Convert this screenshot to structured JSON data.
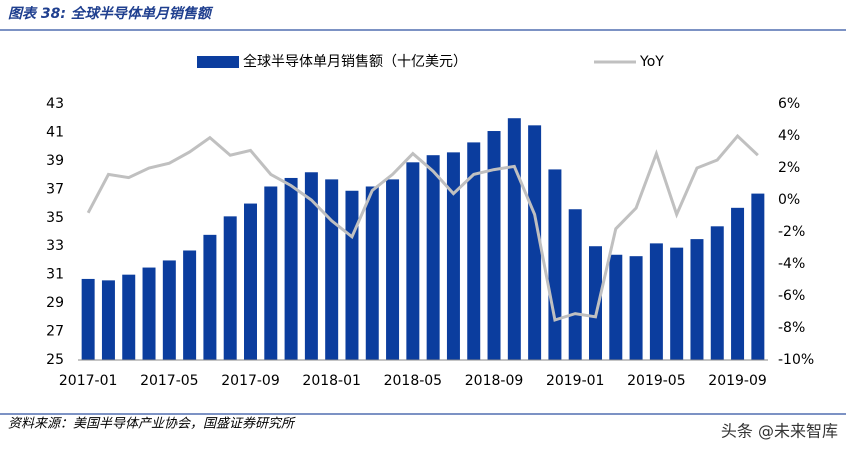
{
  "chart_data": {
    "type": "bar_line",
    "title": "图表 38:  全球半导体单月销售额",
    "source": "资料来源：美国半导体产业协会，国盛证券研究所",
    "watermark": "头条 @未来智库",
    "categories": [
      "2017-01",
      null,
      null,
      null,
      "2017-05",
      null,
      null,
      null,
      "2017-09",
      null,
      null,
      null,
      "2018-01",
      null,
      null,
      null,
      "2018-05",
      null,
      null,
      null,
      "2018-09",
      null,
      null,
      null,
      "2019-01",
      null,
      null,
      null,
      "2019-05",
      null,
      null,
      null,
      "2019-09",
      null
    ],
    "series": [
      {
        "name": "全球半导体单月销售额（十亿美元）",
        "color": "#0b3d9e",
        "type": "bar",
        "values": [
          30.7,
          30.6,
          31.0,
          31.5,
          32.0,
          32.7,
          33.8,
          35.1,
          36.0,
          37.2,
          37.8,
          38.2,
          37.7,
          36.9,
          37.2,
          37.7,
          38.9,
          39.4,
          39.6,
          40.3,
          41.1,
          42.0,
          41.5,
          38.4,
          35.6,
          33.0,
          32.4,
          32.3,
          33.2,
          32.9,
          33.5,
          34.4,
          35.7,
          36.7
        ]
      },
      {
        "name": "YoY",
        "color": "#c0c0c0",
        "type": "line",
        "axis": "y2",
        "values": [
          -0.8,
          1.6,
          1.4,
          2.0,
          2.3,
          3.0,
          3.9,
          2.8,
          3.1,
          1.6,
          0.9,
          0.0,
          -1.3,
          -2.3,
          0.6,
          1.6,
          2.9,
          1.8,
          0.4,
          1.6,
          1.9,
          2.1,
          -0.9,
          -7.5,
          -7.1,
          -7.3,
          -1.8,
          -0.5,
          2.9,
          -0.9,
          2.0,
          2.5,
          4.0,
          2.8
        ]
      }
    ],
    "ylim": [
      25,
      43
    ],
    "yticks": [
      25,
      27,
      29,
      31,
      33,
      35,
      37,
      39,
      41,
      43
    ],
    "y2lim": [
      -10,
      6
    ],
    "y2ticks": [
      {
        "value": -10,
        "label": "-10%"
      },
      {
        "value": -8,
        "label": "-8%"
      },
      {
        "value": -6,
        "label": "-6%"
      },
      {
        "value": -4,
        "label": "-4%"
      },
      {
        "value": -2,
        "label": "-2%"
      },
      {
        "value": 0,
        "label": "0%"
      },
      {
        "value": 2,
        "label": "2%"
      },
      {
        "value": 4,
        "label": "4%"
      },
      {
        "value": 6,
        "label": "6%"
      }
    ],
    "legend": "top"
  }
}
